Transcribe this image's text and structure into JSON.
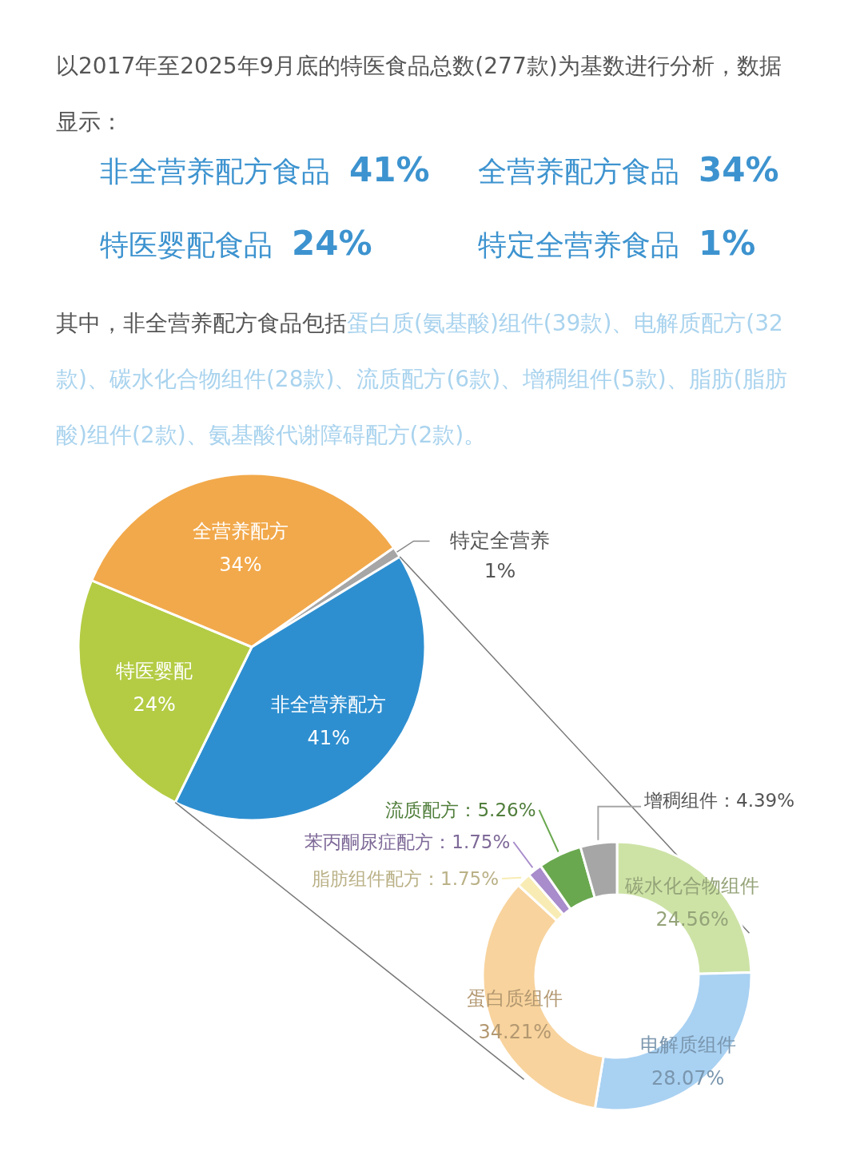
{
  "chart_data": [
    {
      "type": "pie",
      "title": "以2017年至2025年9月底的特医食品总数(277款)为基数进行分析，数据显示：",
      "annotations": [
        "非全营养配方食品 41%",
        "全营养配方食品 34%",
        "特医婴配食品 24%",
        "特定全营养食品 1%",
        "其中，非全营养配方食品包括",
        "蛋白质(氨基酸)组件(39款)、电解质配方(32款)、碳水化合物组件(28款)、流质配方(6款)、增稠组件(5款)、脂肪(脂肪酸)组件(2款)、氨基酸代谢障碍配方(2款)。"
      ],
      "categories": [
        "特定全营养",
        "非全营养配方",
        "特医婴配",
        "全营养配方"
      ],
      "values": [
        1,
        41,
        24,
        34
      ],
      "value_labels": [
        "1%",
        "41%",
        "24%",
        "34%"
      ],
      "colors": [
        "#a6a6a6",
        "#2e8fd0",
        "#b3cc44",
        "#f2a94b"
      ]
    },
    {
      "type": "donut",
      "categories": [
        "碳水化合物组件",
        "电解质组件",
        "蛋白质组件",
        "脂肪组件配方",
        "苯丙酮尿症配方",
        "流质配方",
        "增稠组件"
      ],
      "values": [
        24.56,
        28.07,
        34.21,
        1.75,
        1.75,
        5.26,
        4.39
      ],
      "value_labels": [
        "24.56%",
        "28.07%",
        "34.21%",
        "1.75%",
        "1.75%",
        "5.26%",
        "4.39%"
      ],
      "colors": [
        "#cde3a6",
        "#a9d1f2",
        "#f8d39d",
        "#f8ecb4",
        "#a88ccb",
        "#6aa84f",
        "#a6a6a6"
      ]
    }
  ]
}
